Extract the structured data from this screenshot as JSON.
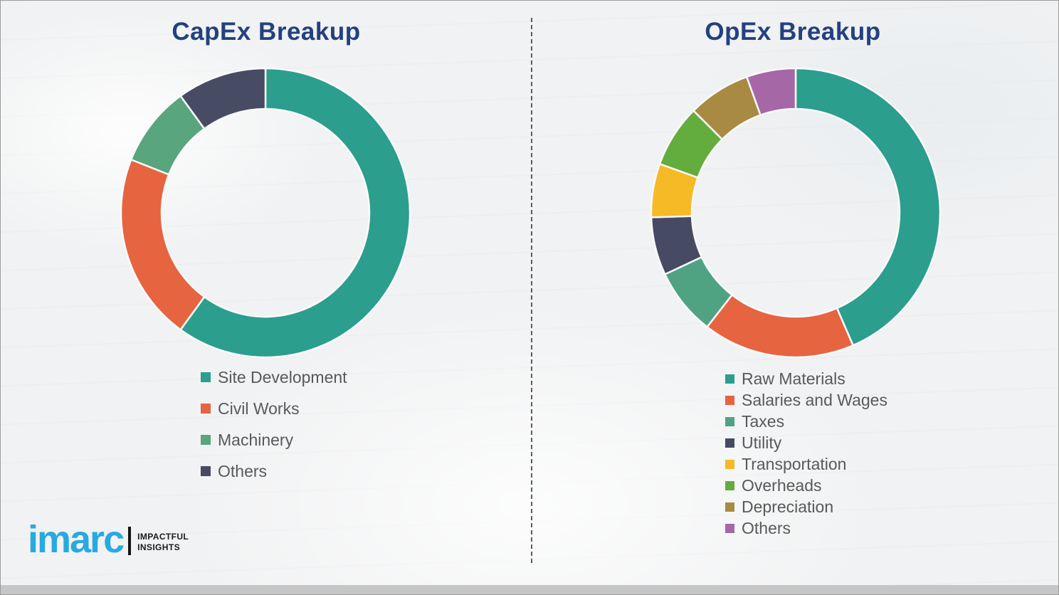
{
  "theme": {
    "title_color": "#24417E",
    "legend_text_color": "#58595B",
    "divider_color": "#5C5C5C",
    "background_color": "#F1F2F3",
    "bottom_bar_color": "#C6C6C7"
  },
  "logo": {
    "brand": "imarc",
    "brand_color": "#29A9E1",
    "tagline_line1": "IMPACTFUL",
    "tagline_line2": "INSIGHTS"
  },
  "chart_data": [
    {
      "type": "pie",
      "subtype": "donut",
      "title": "CapEx Breakup",
      "categories": [
        "Site Development",
        "Civil Works",
        "Machinery",
        "Others"
      ],
      "values": [
        60,
        21,
        9,
        10
      ],
      "values_note": "percent share estimated from arc angles; no data labels shown in image",
      "colors": [
        "#2B9E8E",
        "#E66440",
        "#58A57E",
        "#474B63"
      ],
      "start_angle": "12 o'clock, clockwise",
      "legend_position": "below chart, left-aligned"
    },
    {
      "type": "pie",
      "subtype": "donut",
      "title": "OpEx Breakup",
      "categories": [
        "Raw Materials",
        "Salaries and Wages",
        "Taxes",
        "Utility",
        "Transportation",
        "Overheads",
        "Depreciation",
        "Others"
      ],
      "values": [
        43.5,
        17,
        7.5,
        6.5,
        6,
        7,
        7,
        5.5
      ],
      "values_note": "percent share estimated from arc angles; no data labels shown in image",
      "colors": [
        "#2B9E8E",
        "#E66440",
        "#50A382",
        "#464A63",
        "#F6BA26",
        "#63AC3E",
        "#A98A42",
        "#A667A6"
      ],
      "start_angle": "12 o'clock, clockwise",
      "legend_position": "below chart, left-aligned"
    }
  ]
}
